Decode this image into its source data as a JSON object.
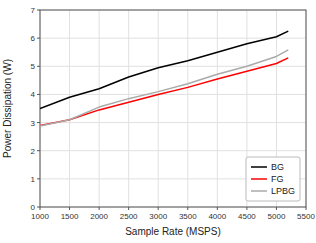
{
  "chart_data": {
    "type": "line",
    "xlabel": "Sample Rate (MSPS)",
    "ylabel": "Power Dissipation (W)",
    "x": [
      1000,
      1500,
      2000,
      2500,
      3000,
      3500,
      4000,
      4500,
      5000,
      5200
    ],
    "series": [
      {
        "name": "BG",
        "color": "#000000",
        "values": [
          3.5,
          3.9,
          4.2,
          4.62,
          4.95,
          5.2,
          5.5,
          5.8,
          6.05,
          6.25
        ]
      },
      {
        "name": "FG",
        "color": "#ff0000",
        "values": [
          2.9,
          3.1,
          3.45,
          3.72,
          4.0,
          4.25,
          4.55,
          4.82,
          5.1,
          5.3
        ]
      },
      {
        "name": "LPBG",
        "color": "#aaaaaa",
        "values": [
          2.88,
          3.1,
          3.55,
          3.85,
          4.1,
          4.38,
          4.72,
          5.0,
          5.35,
          5.58
        ]
      }
    ],
    "xlim": [
      1000,
      5500
    ],
    "ylim": [
      0,
      7
    ],
    "xticks": [
      1000,
      1500,
      2000,
      2500,
      3000,
      3500,
      4000,
      4500,
      5000,
      5500
    ],
    "yticks": [
      0,
      1,
      2,
      3,
      4,
      5,
      6,
      7
    ],
    "grid": true,
    "legend": "lower right"
  }
}
